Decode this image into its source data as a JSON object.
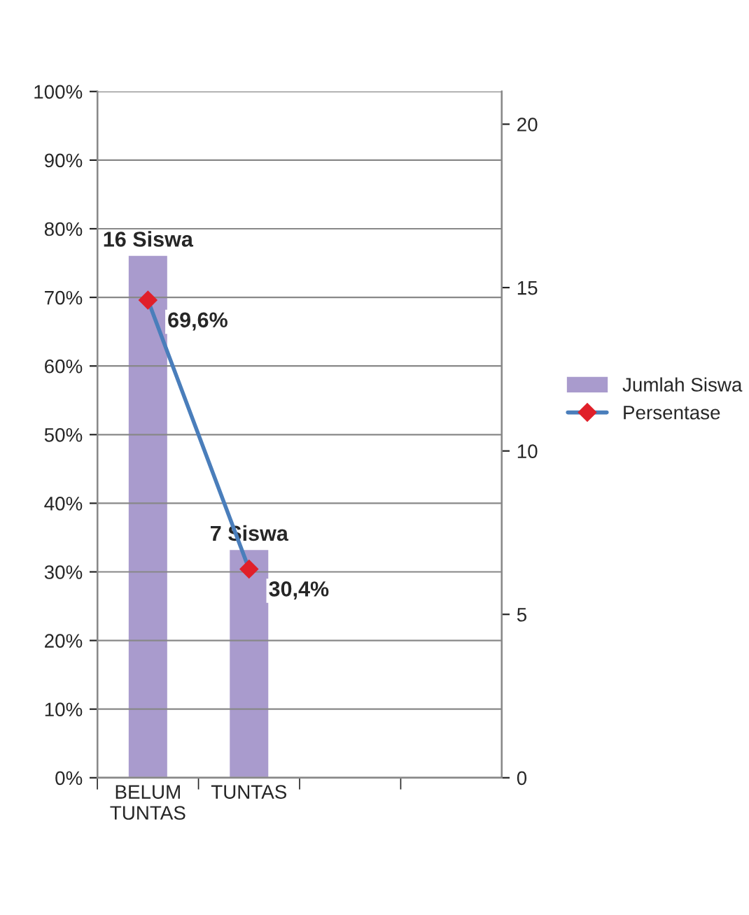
{
  "chart_data": {
    "type": "bar",
    "categories": [
      "BELUM\nTUNTAS",
      "TUNTAS",
      null,
      null
    ],
    "series": [
      {
        "name": "Jumlah Siswa",
        "axis": "y2",
        "color": "#a99bcd",
        "values": [
          16,
          7,
          null,
          null
        ],
        "value_labels": [
          "16 Siswa",
          "7 Siswa",
          null,
          null
        ]
      },
      {
        "name": "Persentase",
        "type": "line",
        "axis": "y",
        "color": "#4a7ebb",
        "marker": "diamond",
        "values": [
          69.6,
          30.4,
          null,
          null
        ],
        "value_labels": [
          "69,6%",
          "30,4%",
          null,
          null
        ]
      }
    ],
    "ylim": [
      0,
      100
    ],
    "yticks": [
      {
        "value": 0,
        "label": "0%"
      },
      {
        "value": 10,
        "label": "10%"
      },
      {
        "value": 20,
        "label": "20%"
      },
      {
        "value": 30,
        "label": "30%"
      },
      {
        "value": 40,
        "label": "40%"
      },
      {
        "value": 50,
        "label": "50%"
      },
      {
        "value": 60,
        "label": "60%"
      },
      {
        "value": 70,
        "label": "70%"
      },
      {
        "value": 80,
        "label": "80%"
      },
      {
        "value": 90,
        "label": "90%"
      },
      {
        "value": 100,
        "label": "100%"
      }
    ],
    "y2lim": [
      0,
      21
    ],
    "y2ticks": [
      0,
      5,
      10,
      15,
      20
    ],
    "grid": "y",
    "legend": "right"
  }
}
